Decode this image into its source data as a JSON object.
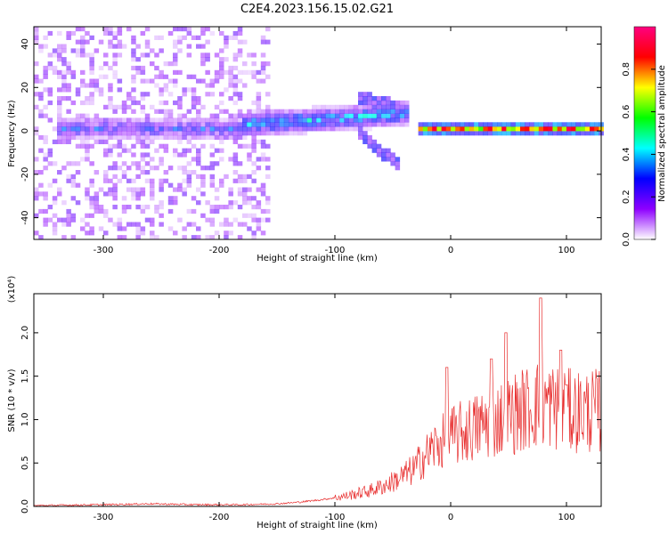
{
  "title": "C2E4.2023.156.15.02.G21",
  "chart_data": [
    {
      "type": "heatmap",
      "title": "C2E4.2023.156.15.02.G21",
      "xlabel": "Height of straight line (km)",
      "ylabel": "Frequency (Hz)",
      "xlim": [
        -360,
        130
      ],
      "ylim": [
        -50,
        48
      ],
      "xticks": [
        -300,
        -200,
        -100,
        0,
        100
      ],
      "yticks": [
        -40,
        -20,
        0,
        20,
        40
      ],
      "grid": false,
      "colorbar": {
        "label": "Normalized spectral amplitude",
        "range": [
          0.0,
          1.0
        ],
        "ticks": [
          0.0,
          0.2,
          0.4,
          0.6,
          0.8
        ],
        "colormap": [
          "#ffffff",
          "#8e00ff",
          "#0000ff",
          "#00ffff",
          "#00ff00",
          "#ffff00",
          "#ff0000",
          "#ff0080"
        ]
      },
      "regions": [
        {
          "name": "broadband noise",
          "x_range": [
            -360,
            -160
          ],
          "freq_range": [
            -50,
            48
          ],
          "amplitude": 0.15
        },
        {
          "name": "signal band",
          "x_range": [
            -180,
            -40
          ],
          "freq_center": [
            0,
            8
          ],
          "amplitude": 0.4
        },
        {
          "name": "diverging tone",
          "x_range": [
            -80,
            -45
          ],
          "freq_range": [
            -20,
            18
          ],
          "amplitude": 0.25
        },
        {
          "name": "stable tone",
          "x_range": [
            -30,
            130
          ],
          "freq_center": 0,
          "amplitude": 0.85
        }
      ]
    },
    {
      "type": "line",
      "xlabel": "Height of straight line (km)",
      "ylabel": "SNR (10 * v/v)",
      "yscale_label": "(x10⁴)",
      "xlim": [
        -360,
        130
      ],
      "ylim": [
        0,
        2.45
      ],
      "xticks": [
        -300,
        -200,
        -100,
        0,
        100
      ],
      "yticks": [
        0.0,
        0.5,
        1.0,
        1.5,
        2.0
      ],
      "color": "#e83030",
      "series": [
        {
          "x": [
            -360,
            -300,
            -260,
            -220,
            -180,
            -150,
            -130,
            -110,
            -90,
            -70,
            -55,
            -45,
            -35,
            -30,
            -25,
            -20,
            -15,
            -10,
            -5,
            0,
            10,
            20,
            30,
            40,
            50,
            60,
            70,
            80,
            90,
            100,
            110,
            120,
            130
          ],
          "values": [
            0.01,
            0.02,
            0.03,
            0.02,
            0.02,
            0.03,
            0.05,
            0.08,
            0.12,
            0.18,
            0.25,
            0.32,
            0.4,
            0.45,
            0.55,
            0.6,
            0.68,
            0.72,
            0.75,
            0.8,
            0.85,
            0.9,
            0.95,
            1.0,
            1.05,
            1.1,
            1.15,
            1.2,
            1.15,
            1.1,
            1.1,
            1.1,
            1.1
          ],
          "peaks": [
            [
              -3,
              1.6
            ],
            [
              35,
              1.7
            ],
            [
              48,
              2.0
            ],
            [
              78,
              2.4
            ],
            [
              95,
              1.8
            ],
            [
              100,
              1.4
            ]
          ]
        }
      ]
    }
  ]
}
